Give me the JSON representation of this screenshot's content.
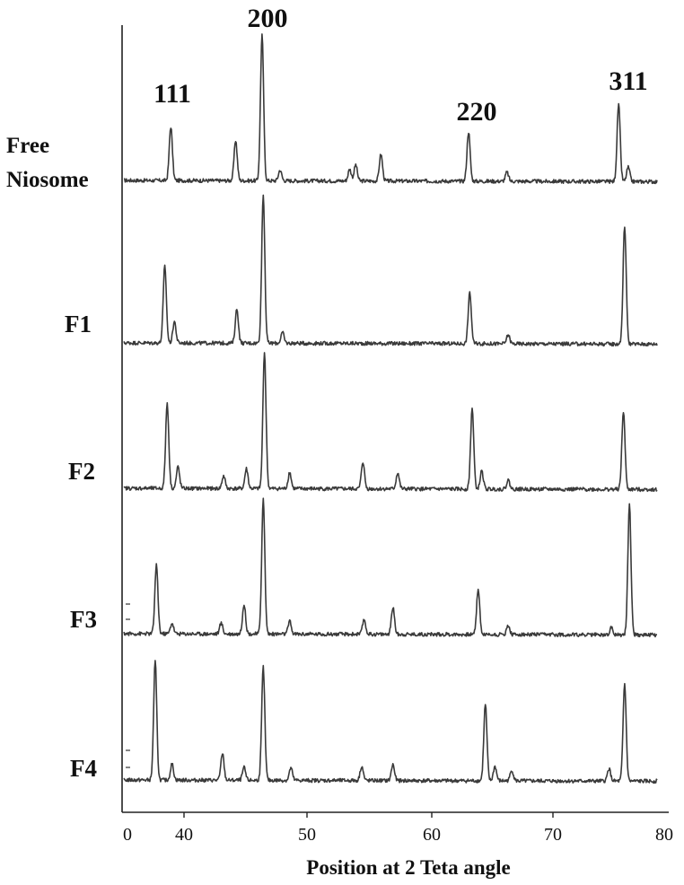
{
  "chart_data": {
    "type": "line",
    "xlabel": "Position at 2 Teta angle",
    "ylabel": "",
    "xlim": [
      0,
      80
    ],
    "x_ticks": [
      "0",
      "40",
      "50",
      "60",
      "70",
      "80"
    ],
    "grid": false,
    "peak_labels": [
      "111",
      "200",
      "220",
      "311"
    ],
    "series": [
      {
        "name_lines": [
          "Free",
          "Niosome"
        ],
        "peaks": [
          [
            38.9,
            60
          ],
          [
            44.3,
            45
          ],
          [
            46.5,
            162
          ],
          [
            48.0,
            12
          ],
          [
            53.8,
            13
          ],
          [
            54.3,
            18
          ],
          [
            56.4,
            30
          ],
          [
            63.7,
            55
          ],
          [
            66.9,
            10
          ],
          [
            76.2,
            86
          ],
          [
            77.0,
            16
          ]
        ]
      },
      {
        "name": "F1",
        "peaks": [
          [
            38.4,
            86
          ],
          [
            39.2,
            24
          ],
          [
            44.4,
            38
          ],
          [
            46.6,
            165
          ],
          [
            48.2,
            12
          ],
          [
            63.8,
            57
          ],
          [
            67.0,
            10
          ],
          [
            76.7,
            132
          ]
        ]
      },
      {
        "name": "F2",
        "peaks": [
          [
            38.6,
            95
          ],
          [
            39.5,
            24
          ],
          [
            43.3,
            14
          ],
          [
            45.2,
            22
          ],
          [
            46.7,
            152
          ],
          [
            48.8,
            18
          ],
          [
            54.9,
            30
          ],
          [
            57.8,
            18
          ],
          [
            64.0,
            90
          ],
          [
            64.8,
            20
          ],
          [
            67.0,
            10
          ],
          [
            76.6,
            87
          ]
        ]
      },
      {
        "name": "F3",
        "peaks": [
          [
            37.7,
            76
          ],
          [
            39.0,
            12
          ],
          [
            43.1,
            12
          ],
          [
            45.0,
            33
          ],
          [
            46.6,
            150
          ],
          [
            48.8,
            14
          ],
          [
            55.0,
            16
          ],
          [
            57.4,
            30
          ],
          [
            64.5,
            50
          ],
          [
            67.0,
            10
          ],
          [
            75.6,
            8
          ],
          [
            77.1,
            146
          ]
        ]
      },
      {
        "name": "F4",
        "peaks": [
          [
            37.6,
            132
          ],
          [
            39.0,
            18
          ],
          [
            43.2,
            30
          ],
          [
            45.0,
            14
          ],
          [
            46.6,
            126
          ],
          [
            48.9,
            14
          ],
          [
            54.8,
            16
          ],
          [
            57.4,
            18
          ],
          [
            65.1,
            85
          ],
          [
            65.9,
            16
          ],
          [
            67.3,
            12
          ],
          [
            75.4,
            14
          ],
          [
            76.7,
            108
          ]
        ]
      }
    ]
  }
}
